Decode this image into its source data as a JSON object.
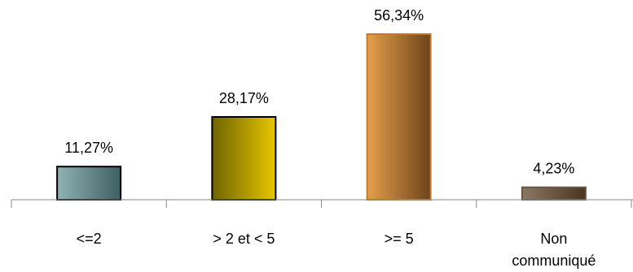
{
  "chart_data": {
    "type": "bar",
    "title": "",
    "xlabel": "",
    "ylabel": "",
    "ylim": [
      0,
      60
    ],
    "grid": false,
    "legend": "none",
    "categories": [
      [
        "<=2"
      ],
      [
        "> 2 et < 5"
      ],
      [
        ">= 5"
      ],
      [
        "Non",
        "communiqué"
      ]
    ],
    "values": [
      11.27,
      28.17,
      56.34,
      4.23
    ],
    "data_labels": [
      "11,27%",
      "28,17%",
      "56,34%",
      "4,23%"
    ],
    "colors": [
      {
        "start": "#8fb3b5",
        "end": "#3f5f63",
        "stroke": "#000000"
      },
      {
        "start": "#6f6400",
        "end": "#e6c600",
        "stroke": "#000000"
      },
      {
        "start": "#e4a04c",
        "end": "#6e421a",
        "stroke": "#c27a2a"
      },
      {
        "start": "#8c7764",
        "end": "#4a3522",
        "stroke": "#6a5542"
      }
    ],
    "axis_color": "#8a8a8a"
  }
}
